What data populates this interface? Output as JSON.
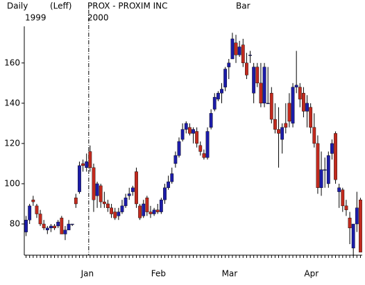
{
  "chart_data": {
    "type": "candlestick",
    "title": "PROX - PROXIM INC",
    "period": "Daily",
    "scale_note": "(Leff)",
    "style_label": "Bar",
    "year_labels": [
      "1999",
      "2000"
    ],
    "categories": [
      null,
      null,
      null,
      null,
      null,
      null,
      null,
      null,
      null,
      null,
      null,
      null,
      null,
      null,
      null,
      null,
      null,
      null,
      "Jan",
      null,
      null,
      null,
      null,
      null,
      null,
      null,
      null,
      null,
      null,
      null,
      null,
      null,
      null,
      null,
      null,
      null,
      null,
      null,
      "Feb",
      null,
      null,
      null,
      null,
      null,
      null,
      null,
      null,
      null,
      null,
      null,
      null,
      null,
      null,
      null,
      null,
      null,
      null,
      null,
      "Mar",
      null,
      null,
      null,
      null,
      null,
      null,
      null,
      null,
      null,
      null,
      null,
      null,
      null,
      null,
      null,
      null,
      null,
      null,
      null,
      null,
      null,
      null,
      "Apr",
      null,
      null,
      null,
      null,
      null,
      null,
      null,
      null,
      null,
      null,
      null,
      null,
      null
    ],
    "open": [
      76,
      82,
      92,
      89,
      85,
      80,
      77,
      78,
      79,
      79,
      83,
      75,
      77,
      80,
      93,
      96,
      110,
      108,
      116,
      108,
      94,
      99,
      91,
      90,
      88,
      86,
      84,
      86,
      89,
      94,
      96,
      106,
      89,
      84,
      93,
      86,
      85,
      87,
      86,
      92,
      98,
      101,
      110,
      114,
      122,
      127,
      128,
      125,
      126,
      119,
      115,
      113,
      128,
      137,
      142,
      145,
      148,
      158,
      162,
      170,
      164,
      169,
      160,
      164,
      145,
      158,
      150,
      140,
      140,
      145,
      132,
      127,
      122,
      130,
      140,
      130,
      148,
      148,
      145,
      136,
      138,
      128,
      120,
      98,
      107,
      100,
      115,
      125,
      96,
      97,
      89,
      83,
      68,
      80,
      92
    ],
    "high": [
      84,
      90,
      94,
      90,
      87,
      82,
      79,
      80,
      80,
      82,
      84,
      79,
      82,
      80,
      95,
      111,
      112,
      115,
      119,
      110,
      101,
      100,
      96,
      92,
      90,
      88,
      88,
      92,
      95,
      98,
      99,
      108,
      90,
      92,
      94,
      89,
      88,
      90,
      93,
      100,
      104,
      108,
      116,
      123,
      130,
      131,
      130,
      128,
      128,
      121,
      117,
      128,
      137,
      145,
      146,
      150,
      158,
      162,
      175,
      174,
      171,
      172,
      165,
      166,
      160,
      160,
      160,
      160,
      158,
      148,
      140,
      138,
      130,
      140,
      145,
      150,
      166,
      150,
      148,
      144,
      140,
      135,
      124,
      116,
      113,
      116,
      122,
      126,
      100,
      98,
      92,
      86,
      80,
      96,
      93
    ],
    "low": [
      74,
      80,
      89,
      83,
      79,
      77,
      75,
      76,
      77,
      78,
      75,
      72,
      77,
      79,
      88,
      95,
      106,
      106,
      106,
      86,
      88,
      88,
      88,
      86,
      83,
      82,
      82,
      85,
      88,
      92,
      94,
      88,
      82,
      83,
      84,
      83,
      84,
      85,
      85,
      90,
      97,
      100,
      108,
      113,
      121,
      125,
      124,
      120,
      118,
      114,
      112,
      112,
      127,
      136,
      141,
      140,
      146,
      152,
      162,
      160,
      163,
      158,
      152,
      160,
      140,
      148,
      138,
      138,
      140,
      130,
      125,
      108,
      115,
      125,
      128,
      128,
      145,
      138,
      133,
      128,
      125,
      118,
      95,
      94,
      98,
      98,
      112,
      100,
      88,
      86,
      84,
      70,
      64,
      76,
      66
    ],
    "close": [
      82,
      89,
      91,
      85,
      80,
      78,
      78,
      79,
      78,
      81,
      75,
      77,
      80,
      80,
      90,
      109,
      109,
      111,
      108,
      92,
      100,
      91,
      90,
      88,
      85,
      83,
      86,
      89,
      93,
      95,
      98,
      90,
      83,
      90,
      86,
      85,
      87,
      86,
      92,
      98,
      101,
      105,
      114,
      121,
      127,
      130,
      125,
      127,
      120,
      116,
      113,
      126,
      135,
      143,
      145,
      147,
      157,
      160,
      172,
      164,
      168,
      160,
      154,
      164,
      158,
      150,
      140,
      158,
      140,
      132,
      127,
      125,
      128,
      128,
      131,
      148,
      149,
      142,
      136,
      140,
      128,
      120,
      98,
      107,
      107,
      114,
      120,
      102,
      98,
      89,
      87,
      78,
      80,
      88,
      66
    ],
    "up_color": "#1c1ca8",
    "down_color": "#c22a1e",
    "ylim": [
      64.5,
      177.5
    ],
    "yticks": [
      80,
      100,
      120,
      140,
      160
    ]
  }
}
